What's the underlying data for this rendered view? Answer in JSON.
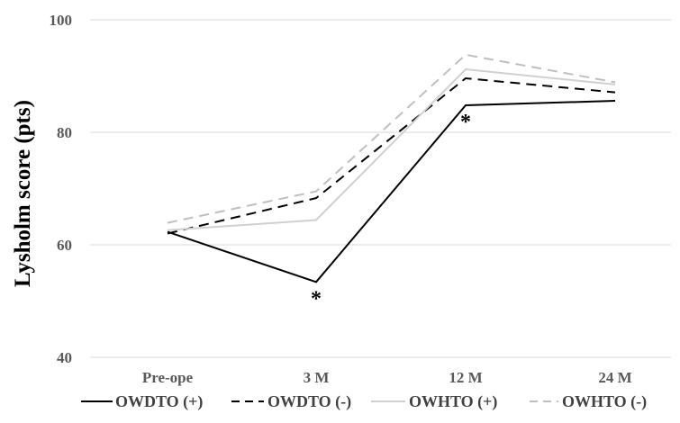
{
  "chart_data": {
    "type": "line",
    "title": "",
    "xlabel": "",
    "ylabel": "Lysholm score (pts)",
    "categories": [
      "Pre-ope",
      "3 M",
      "12 M",
      "24 M"
    ],
    "ylim": [
      40,
      100
    ],
    "yticks": [
      40,
      60,
      80,
      100
    ],
    "grid": true,
    "legend_position": "bottom",
    "series": [
      {
        "name": "OWDTO (+)",
        "values": [
          62.3,
          53.4,
          84.8,
          85.6
        ],
        "color": "#000000",
        "dash": "solid"
      },
      {
        "name": "OWDTO (-)",
        "values": [
          62.0,
          68.3,
          89.6,
          87.1
        ],
        "color": "#000000",
        "dash": "dashed"
      },
      {
        "name": "OWHTO (+)",
        "values": [
          62.6,
          64.4,
          91.2,
          88.5
        ],
        "color": "#d0d0d0",
        "dash": "solid"
      },
      {
        "name": "OWHTO (-)",
        "values": [
          63.9,
          69.5,
          93.8,
          88.9
        ],
        "color": "#bfbfbf",
        "dash": "dashed"
      }
    ],
    "annotations": [
      {
        "text": "*",
        "category": "3 M",
        "value": 53.4
      },
      {
        "text": "*",
        "category": "12 M",
        "value": 84.8
      }
    ]
  }
}
